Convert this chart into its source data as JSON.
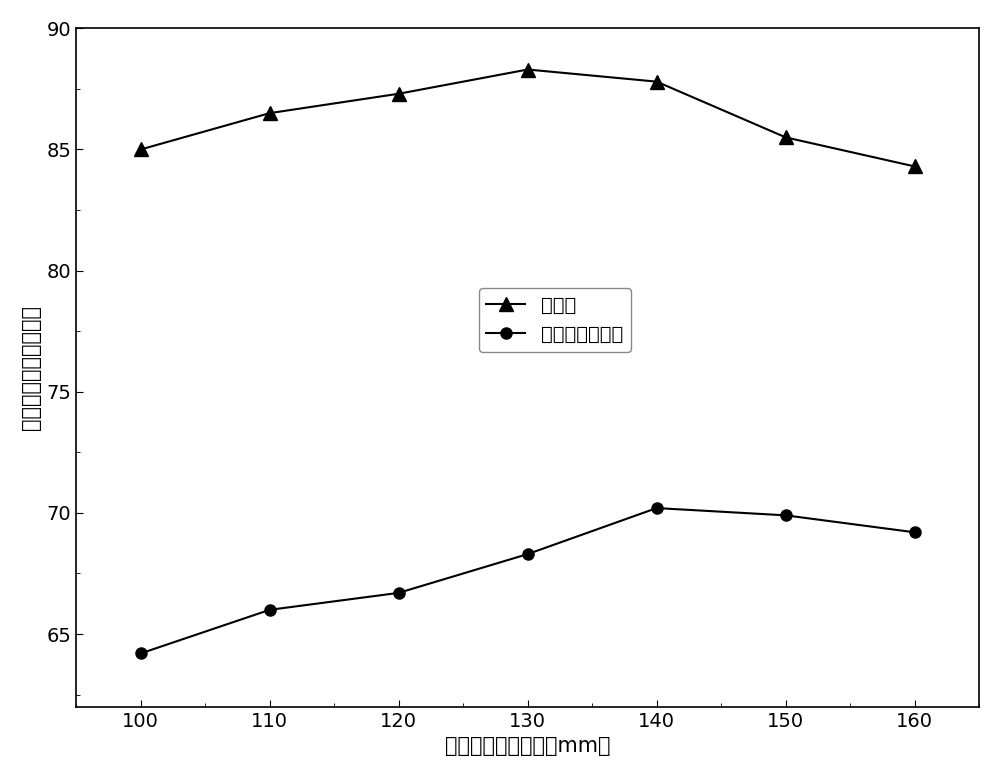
{
  "x": [
    100,
    110,
    120,
    130,
    140,
    150,
    160
  ],
  "desulfurization_rate": [
    85.0,
    86.5,
    87.3,
    88.3,
    87.8,
    85.5,
    84.3
  ],
  "dioxin_reduction_rate": [
    64.2,
    66.0,
    66.7,
    68.3,
    70.2,
    69.9,
    69.2
  ],
  "xlabel": "协同减排料层高度（mm）",
  "ylabel": "污染物减排效率（％）",
  "legend_desulfurization": "脱硫率",
  "legend_dioxin": "二噌英减排效率",
  "ylim_min": 62,
  "ylim_max": 90,
  "yticks": [
    65,
    70,
    75,
    80,
    85,
    90
  ],
  "xticks": [
    100,
    110,
    120,
    130,
    140,
    150,
    160
  ],
  "line_color": "#000000",
  "background_color": "#ffffff",
  "label_fontsize": 15,
  "tick_fontsize": 14,
  "legend_fontsize": 14
}
